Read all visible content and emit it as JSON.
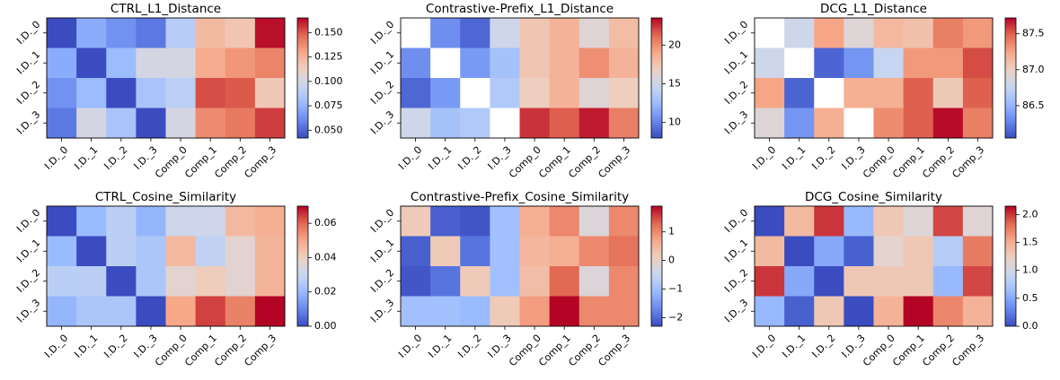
{
  "colormap": [
    "#3b4cc0",
    "#6788ee",
    "#9abbff",
    "#c9d7f0",
    "#edd1c2",
    "#f7a889",
    "#e26952",
    "#b40426"
  ],
  "chart_data": [
    {
      "type": "heatmap",
      "title": "CTRL_L1_Distance",
      "rows": [
        "I.D._0",
        "I.D._1",
        "I.D._2",
        "I.D._3"
      ],
      "cols": [
        "I.D._0",
        "I.D._1",
        "I.D._2",
        "I.D._3",
        "Comp_0",
        "Comp_1",
        "Comp_2",
        "Comp_3"
      ],
      "values": [
        [
          0.0,
          0.072,
          0.063,
          0.055,
          0.088,
          0.122,
          0.117,
          0.163
        ],
        [
          0.072,
          0.0,
          0.078,
          0.1,
          0.1,
          0.128,
          0.135,
          0.14
        ],
        [
          0.063,
          0.078,
          0.0,
          0.083,
          0.09,
          0.152,
          0.15,
          0.116
        ],
        [
          0.055,
          0.1,
          0.083,
          0.0,
          0.1,
          0.138,
          0.143,
          0.155
        ]
      ],
      "zlim": [
        0.042,
        0.165
      ],
      "colorbar_ticks": [
        "0.050",
        "0.075",
        "0.100",
        "0.125",
        "0.150"
      ],
      "colorbar_tick_values": [
        0.05,
        0.075,
        0.1,
        0.125,
        0.15
      ]
    },
    {
      "type": "heatmap",
      "title": "Contrastive-Prefix_L1_Distance",
      "rows": [
        "I.D._0",
        "I.D._1",
        "I.D._2",
        "I.D._3"
      ],
      "cols": [
        "I.D._0",
        "I.D._1",
        "I.D._2",
        "I.D._3",
        "Comp_0",
        "Comp_1",
        "Comp_2",
        "Comp_3"
      ],
      "values": [
        [
          null,
          10.5,
          9.0,
          15.0,
          17.5,
          18.5,
          16.0,
          18.0
        ],
        [
          10.5,
          null,
          11.0,
          13.0,
          17.5,
          18.5,
          20.0,
          18.5
        ],
        [
          9.0,
          11.0,
          null,
          13.5,
          17.0,
          18.5,
          16.0,
          17.0
        ],
        [
          15.0,
          13.0,
          13.5,
          null,
          22.5,
          21.5,
          23.0,
          20.5
        ]
      ],
      "zlim": [
        8.0,
        23.5
      ],
      "colorbar_ticks": [
        "10",
        "15",
        "20"
      ],
      "colorbar_tick_values": [
        10,
        15,
        20
      ]
    },
    {
      "type": "heatmap",
      "title": "DCG_L1_Distance",
      "rows": [
        "I.D._0",
        "I.D._1",
        "I.D._2",
        "I.D._3"
      ],
      "cols": [
        "I.D._0",
        "I.D._1",
        "I.D._2",
        "I.D._3",
        "Comp_0",
        "Comp_1",
        "Comp_2",
        "Comp_3"
      ],
      "values": [
        [
          null,
          86.8,
          87.25,
          86.9,
          87.15,
          87.1,
          87.4,
          87.3
        ],
        [
          86.8,
          null,
          86.15,
          86.35,
          86.75,
          87.3,
          87.3,
          87.55
        ],
        [
          87.25,
          86.15,
          null,
          87.2,
          87.2,
          87.5,
          87.05,
          87.5
        ],
        [
          86.9,
          86.35,
          87.2,
          null,
          87.35,
          87.5,
          87.7,
          87.4
        ]
      ],
      "zlim": [
        86.05,
        87.72
      ],
      "colorbar_ticks": [
        "86.5",
        "87.0",
        "87.5"
      ],
      "colorbar_tick_values": [
        86.5,
        87.0,
        87.5
      ]
    },
    {
      "type": "heatmap",
      "title": "CTRL_Cosine_Similarity",
      "rows": [
        "I.D._0",
        "I.D._1",
        "I.D._2",
        "I.D._3"
      ],
      "cols": [
        "I.D._0",
        "I.D._1",
        "I.D._2",
        "I.D._3",
        "Comp_0",
        "Comp_1",
        "Comp_2",
        "Comp_3"
      ],
      "values": [
        [
          0.0,
          0.02,
          0.027,
          0.019,
          0.031,
          0.031,
          0.046,
          0.048
        ],
        [
          0.02,
          0.0,
          0.027,
          0.024,
          0.046,
          0.028,
          0.037,
          0.047
        ],
        [
          0.027,
          0.027,
          0.0,
          0.024,
          0.037,
          0.041,
          0.037,
          0.047
        ],
        [
          0.019,
          0.024,
          0.024,
          0.0,
          0.05,
          0.064,
          0.056,
          0.07
        ]
      ],
      "zlim": [
        0.0,
        0.07
      ],
      "colorbar_ticks": [
        "0.00",
        "0.02",
        "0.04",
        "0.06"
      ],
      "colorbar_tick_values": [
        0.0,
        0.02,
        0.04,
        0.06
      ]
    },
    {
      "type": "heatmap",
      "title": "Contrastive-Prefix_Cosine_Similarity",
      "rows": [
        "I.D._0",
        "I.D._1",
        "I.D._2",
        "I.D._3"
      ],
      "cols": [
        "I.D._0",
        "I.D._1",
        "I.D._2",
        "I.D._3",
        "Comp_0",
        "Comp_1",
        "Comp_2",
        "Comp_3"
      ],
      "values": [
        [
          0.2,
          -2.1,
          -2.2,
          -1.0,
          0.6,
          1.0,
          -0.2,
          1.0
        ],
        [
          -2.1,
          0.2,
          -1.9,
          -1.0,
          0.5,
          0.6,
          1.0,
          1.2
        ],
        [
          -2.2,
          -1.9,
          0.2,
          -1.0,
          0.4,
          1.3,
          -0.2,
          1.0
        ],
        [
          -1.0,
          -1.0,
          -1.1,
          0.2,
          0.8,
          1.9,
          1.0,
          1.0
        ]
      ],
      "zlim": [
        -2.3,
        1.9
      ],
      "colorbar_ticks": [
        "−2",
        "−1",
        "0",
        "1"
      ],
      "colorbar_tick_values": [
        -2,
        -1,
        0,
        1
      ]
    },
    {
      "type": "heatmap",
      "title": "DCG_Cosine_Similarity",
      "rows": [
        "I.D._0",
        "I.D._1",
        "I.D._2",
        "I.D._3"
      ],
      "cols": [
        "I.D._0",
        "I.D._1",
        "I.D._2",
        "I.D._3",
        "Comp_0",
        "Comp_1",
        "Comp_2",
        "Comp_3"
      ],
      "values": [
        [
          0.0,
          1.4,
          2.0,
          0.6,
          1.3,
          1.1,
          1.95,
          1.1
        ],
        [
          1.4,
          0.0,
          0.5,
          0.1,
          1.15,
          1.3,
          0.8,
          1.75
        ],
        [
          2.0,
          0.5,
          0.0,
          1.3,
          1.3,
          1.3,
          0.6,
          1.95
        ],
        [
          0.6,
          0.1,
          1.3,
          0.0,
          1.45,
          2.15,
          1.7,
          1.45
        ]
      ],
      "zlim": [
        0.0,
        2.15
      ],
      "colorbar_ticks": [
        "0.0",
        "0.5",
        "1.0",
        "1.5",
        "2.0"
      ],
      "colorbar_tick_values": [
        0.0,
        0.5,
        1.0,
        1.5,
        2.0
      ]
    }
  ]
}
